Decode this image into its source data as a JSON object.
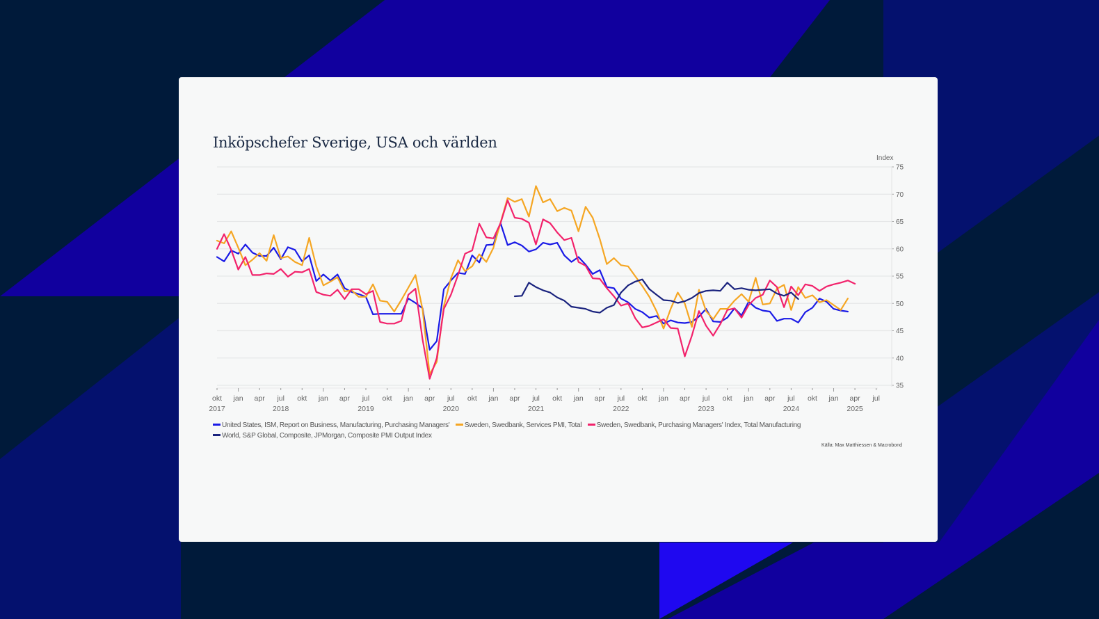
{
  "background_colors": {
    "dark": "#001a3a",
    "blue": "#11009e",
    "navy": "#04116e",
    "bright": "#1f08f0"
  },
  "card": {
    "title": "Inköpschefer Sverige, USA och världen",
    "source": "Källa: Max Matthiessen & Macrobond"
  },
  "chart_data": {
    "type": "line",
    "title": "Inköpschefer Sverige, USA och världen",
    "ylabel": "Index",
    "ylim": [
      35,
      75
    ],
    "yticks": [
      35,
      40,
      45,
      50,
      55,
      60,
      65,
      70,
      75
    ],
    "y_axis_side": "right",
    "grid": true,
    "x_start": "2017-10",
    "x_end": "2025-07",
    "x_frequency": "monthly",
    "xticks": [
      {
        "label": "okt",
        "year": "2017"
      },
      {
        "label": "jan",
        "year": ""
      },
      {
        "label": "apr",
        "year": ""
      },
      {
        "label": "jul",
        "year": "2018"
      },
      {
        "label": "okt",
        "year": ""
      },
      {
        "label": "jan",
        "year": ""
      },
      {
        "label": "apr",
        "year": ""
      },
      {
        "label": "jul",
        "year": "2019"
      },
      {
        "label": "okt",
        "year": ""
      },
      {
        "label": "jan",
        "year": ""
      },
      {
        "label": "apr",
        "year": ""
      },
      {
        "label": "jul",
        "year": "2020"
      },
      {
        "label": "okt",
        "year": ""
      },
      {
        "label": "jan",
        "year": ""
      },
      {
        "label": "apr",
        "year": ""
      },
      {
        "label": "jul",
        "year": "2021"
      },
      {
        "label": "okt",
        "year": ""
      },
      {
        "label": "jan",
        "year": ""
      },
      {
        "label": "apr",
        "year": ""
      },
      {
        "label": "jul",
        "year": "2022"
      },
      {
        "label": "okt",
        "year": ""
      },
      {
        "label": "jan",
        "year": ""
      },
      {
        "label": "apr",
        "year": ""
      },
      {
        "label": "jul",
        "year": "2023"
      },
      {
        "label": "okt",
        "year": ""
      },
      {
        "label": "jan",
        "year": ""
      },
      {
        "label": "apr",
        "year": ""
      },
      {
        "label": "jul",
        "year": "2024"
      },
      {
        "label": "okt",
        "year": ""
      },
      {
        "label": "jan",
        "year": ""
      },
      {
        "label": "apr",
        "year": "2025"
      },
      {
        "label": "jul",
        "year": ""
      }
    ],
    "legend_position": "bottom",
    "series": [
      {
        "name": "United States, ISM, Report on Business, Manufacturing, Purchasing Managers'",
        "color": "#1a1ae6",
        "start": "2017-10",
        "values": [
          58.5,
          57.7,
          59.7,
          59.1,
          60.8,
          59.3,
          58.7,
          58.7,
          60.2,
          58.1,
          60.3,
          59.8,
          57.7,
          58.8,
          54.1,
          55.3,
          54.2,
          55.3,
          52.8,
          52.1,
          51.7,
          51.2,
          48.0,
          48.1,
          48.1,
          48.1,
          48.1,
          50.9,
          50.1,
          49.1,
          41.5,
          43.1,
          52.6,
          54.2,
          55.6,
          55.4,
          58.8,
          57.5,
          60.7,
          60.8,
          64.7,
          60.7,
          61.2,
          60.6,
          59.5,
          59.9,
          61.1,
          60.8,
          61.1,
          58.8,
          57.6,
          58.5,
          57.1,
          55.4,
          56.1,
          53.0,
          52.8,
          50.9,
          50.2,
          49.0,
          48.4,
          47.4,
          47.7,
          46.3,
          46.9,
          46.5,
          46.4,
          46.6,
          47.6,
          49.0,
          46.7,
          46.6,
          47.4,
          49.1,
          47.8,
          50.3,
          49.2,
          48.7,
          48.5,
          46.8,
          47.2,
          47.2,
          46.5,
          48.4,
          49.2,
          50.9,
          50.3,
          49.0,
          48.7,
          48.5
        ]
      },
      {
        "name": "Sweden, Swedbank, Services PMI, Total",
        "color": "#f5a623",
        "start": "2017-10",
        "values": [
          61.5,
          61.0,
          63.2,
          60.2,
          57.0,
          58.0,
          59.2,
          57.8,
          62.5,
          58.3,
          58.6,
          57.6,
          57.0,
          62.0,
          56.8,
          53.3,
          54.0,
          54.8,
          52.2,
          52.4,
          51.2,
          51.2,
          53.5,
          50.5,
          50.3,
          48.5,
          50.6,
          52.9,
          55.2,
          48.9,
          37.0,
          39.3,
          49.5,
          54.6,
          57.9,
          55.9,
          56.8,
          59.0,
          57.6,
          60.2,
          64.8,
          69.3,
          68.6,
          69.1,
          65.9,
          71.5,
          68.5,
          69.1,
          66.9,
          67.5,
          67.0,
          63.2,
          67.7,
          65.7,
          61.8,
          57.2,
          58.3,
          57.0,
          56.8,
          55.0,
          53.2,
          51.2,
          48.6,
          45.4,
          49.0,
          52.0,
          50.0,
          45.7,
          52.5,
          48.6,
          47.1,
          49.0,
          49.0,
          50.5,
          51.7,
          50.3,
          54.7,
          49.8,
          50.0,
          52.7,
          53.4,
          48.8,
          53.0,
          51.0,
          51.5,
          50.2,
          50.6,
          49.7,
          48.8,
          50.9
        ]
      },
      {
        "name": "Sweden, Swedbank, Purchasing Managers' Index, Total Manufacturing",
        "color": "#f2226b",
        "start": "2017-10",
        "values": [
          60.0,
          62.7,
          59.8,
          56.2,
          58.5,
          55.2,
          55.2,
          55.5,
          55.4,
          56.3,
          54.9,
          55.8,
          55.7,
          56.3,
          52.1,
          51.6,
          51.4,
          52.5,
          50.8,
          52.6,
          52.6,
          51.7,
          52.3,
          46.6,
          46.3,
          46.3,
          46.8,
          51.6,
          52.7,
          43.4,
          36.2,
          40.0,
          49.0,
          51.6,
          55.2,
          59.1,
          59.7,
          64.6,
          62.1,
          61.9,
          64.7,
          68.9,
          65.7,
          65.5,
          64.8,
          60.8,
          65.4,
          64.7,
          63.0,
          61.6,
          62.0,
          57.6,
          56.9,
          54.6,
          54.5,
          52.8,
          51.3,
          49.6,
          50.0,
          47.3,
          45.6,
          45.9,
          46.5,
          47.1,
          45.5,
          45.4,
          40.3,
          44.1,
          48.6,
          45.9,
          44.1,
          46.2,
          48.8,
          49.1,
          47.4,
          49.7,
          51.0,
          51.6,
          54.2,
          53.0,
          49.3,
          53.1,
          51.5,
          53.5,
          53.2,
          52.3,
          53.1,
          53.5,
          53.8,
          54.2,
          53.6
        ]
      },
      {
        "name": "World, S&P Global, Composite, JPMorgan, Composite PMI Output Index",
        "color": "#1a237e",
        "start": "2021-04",
        "values": [
          51.3,
          51.4,
          53.8,
          53.0,
          52.4,
          52.0,
          51.1,
          50.5,
          49.4,
          49.2,
          49.0,
          48.5,
          48.3,
          49.2,
          49.7,
          52.0,
          53.3,
          54.0,
          54.4,
          52.6,
          51.6,
          50.6,
          50.5,
          50.1,
          50.4,
          51.0,
          51.9,
          52.3,
          52.4,
          52.3,
          53.8,
          52.6,
          52.8,
          52.5,
          52.4,
          52.5,
          52.6,
          51.8,
          51.4,
          52.0,
          50.8
        ]
      }
    ]
  },
  "legend": {
    "items": [
      {
        "label": "United States, ISM, Report on Business, Manufacturing, Purchasing Managers'",
        "color": "#1a1ae6"
      },
      {
        "label": "Sweden, Swedbank, Services PMI, Total",
        "color": "#f5a623"
      },
      {
        "label": "Sweden, Swedbank, Purchasing Managers' Index, Total Manufacturing",
        "color": "#f2226b"
      },
      {
        "label": "World, S&P Global, Composite, JPMorgan, Composite PMI Output Index",
        "color": "#1a237e"
      }
    ]
  }
}
